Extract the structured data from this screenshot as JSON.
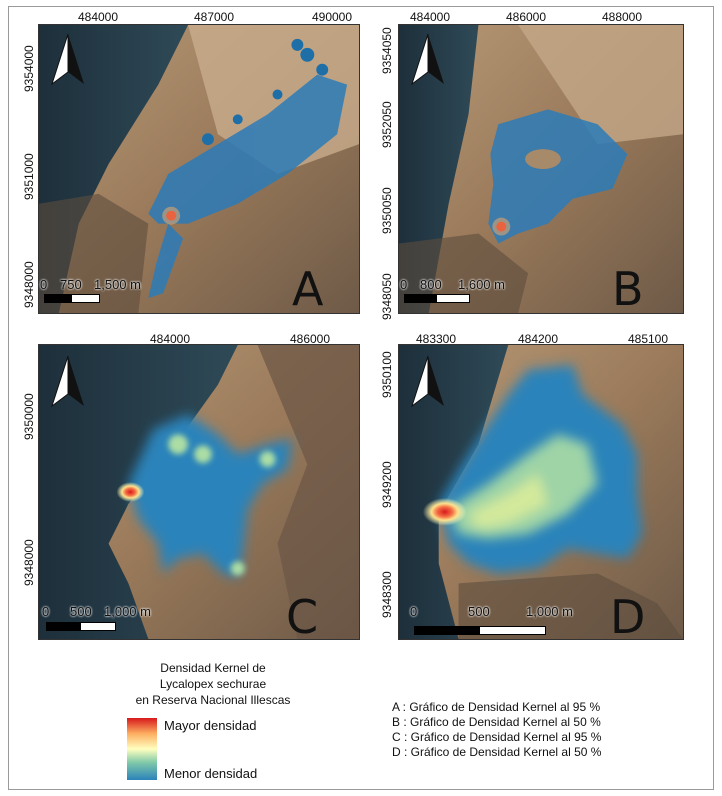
{
  "panels": {
    "A": {
      "letter": "A",
      "x_ticks": [
        "484000",
        "487000",
        "490000"
      ],
      "y_ticks": [
        "9354000",
        "9351000",
        "9348000"
      ],
      "scale": {
        "zero": "0",
        "mid": "750",
        "end": "1,500 m"
      }
    },
    "B": {
      "letter": "B",
      "x_ticks": [
        "484000",
        "486000",
        "488000"
      ],
      "y_ticks": [
        "9354050",
        "9352050",
        "9350050",
        "9348050"
      ],
      "scale": {
        "zero": "0",
        "mid": "800",
        "end": "1,600 m"
      }
    },
    "C": {
      "letter": "C",
      "x_ticks": [
        "484000",
        "486000"
      ],
      "y_ticks": [
        "9350000",
        "9348000"
      ],
      "scale": {
        "zero": "0",
        "mid": "500",
        "end": "1,000 m"
      }
    },
    "D": {
      "letter": "D",
      "x_ticks": [
        "483300",
        "484200",
        "485100"
      ],
      "y_ticks": [
        "9350100",
        "9349200",
        "9348300"
      ],
      "scale": {
        "zero": "0",
        "mid": "500",
        "end": "1,000 m"
      }
    }
  },
  "legend": {
    "title_line1": "Densidad Kernel de",
    "title_line2": "Lycalopex sechurae",
    "title_line3": "en Reserva Nacional Illescas",
    "high": "Mayor densidad",
    "low": "Menor densidad",
    "colors": {
      "high": "#d7191c",
      "mid": "#ffffbf",
      "low": "#2b83ba"
    }
  },
  "notes": [
    "A : Gráfico de Densidad Kernel al 95 %",
    "B : Gráfico de Densidad Kernel al 50 %",
    "C : Gráfico de Densidad Kernel al 95 %",
    "D : Gráfico de Densidad Kernel al 50 %"
  ],
  "icons": {
    "north": "north-arrow-icon"
  }
}
